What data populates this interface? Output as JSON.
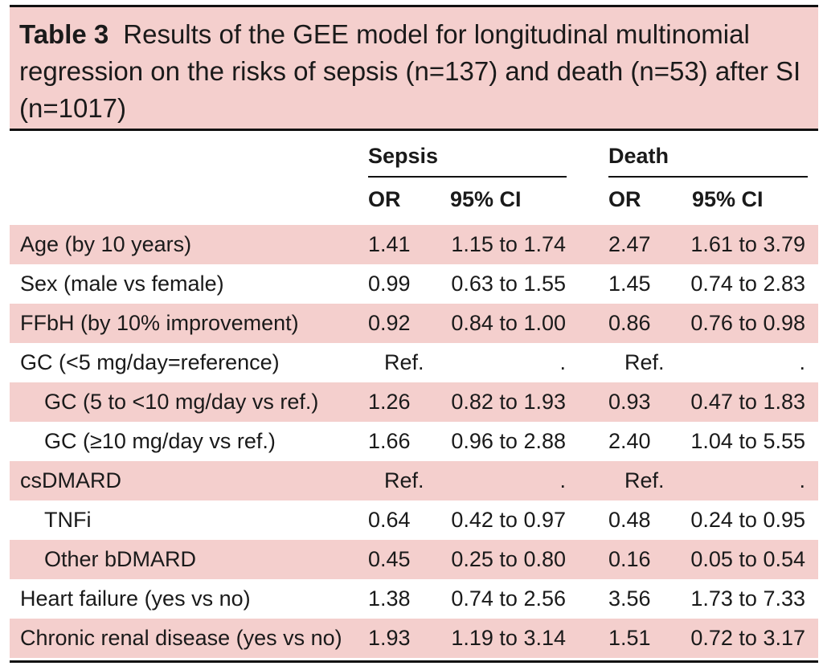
{
  "caption": {
    "label": "Table 3",
    "text": "Results of the GEE model for longitudinal multinomial regression on the risks of sepsis (n=137) and death (n=53) after SI (n=1017)"
  },
  "header": {
    "group1": "Sepsis",
    "group2": "Death",
    "or": "OR",
    "ci": "95% CI"
  },
  "rows": [
    {
      "label": "Age (by 10 years)",
      "or1": "1.41",
      "ci1": "1.15 to 1.74",
      "or2": "2.47",
      "ci2": "1.61 to 3.79"
    },
    {
      "label": "Sex (male vs female)",
      "or1": "0.99",
      "ci1": "0.63 to 1.55",
      "or2": "1.45",
      "ci2": "0.74 to 2.83"
    },
    {
      "label": "FFbH (by 10% improvement)",
      "or1": "0.92",
      "ci1": "0.84 to 1.00",
      "or2": "0.86",
      "ci2": "0.76 to 0.98"
    },
    {
      "label": "GC (<5 mg/day=reference)",
      "or1": "Ref.",
      "ci1": ".",
      "or2": "Ref.",
      "ci2": "."
    },
    {
      "label": "GC (5 to <10 mg/day vs ref.)",
      "or1": "1.26",
      "ci1": "0.82 to 1.93",
      "or2": "0.93",
      "ci2": "0.47 to 1.83"
    },
    {
      "label": "GC (≥10 mg/day vs ref.)",
      "or1": "1.66",
      "ci1": "0.96 to 2.88",
      "or2": "2.40",
      "ci2": "1.04 to 5.55"
    },
    {
      "label": "csDMARD",
      "or1": "Ref.",
      "ci1": ".",
      "or2": "Ref.",
      "ci2": "."
    },
    {
      "label": "TNFi",
      "or1": "0.64",
      "ci1": "0.42 to 0.97",
      "or2": "0.48",
      "ci2": "0.24 to 0.95"
    },
    {
      "label": "Other bDMARD",
      "or1": "0.45",
      "ci1": "0.25 to 0.80",
      "or2": "0.16",
      "ci2": "0.05 to 0.54"
    },
    {
      "label": "Heart failure (yes vs no)",
      "or1": "1.38",
      "ci1": "0.74 to 2.56",
      "or2": "3.56",
      "ci2": "1.73 to 7.33"
    },
    {
      "label": "Chronic renal disease (yes vs no)",
      "or1": "1.93",
      "ci1": "1.19 to 3.14",
      "or2": "1.51",
      "ci2": "0.72 to 3.17"
    }
  ]
}
